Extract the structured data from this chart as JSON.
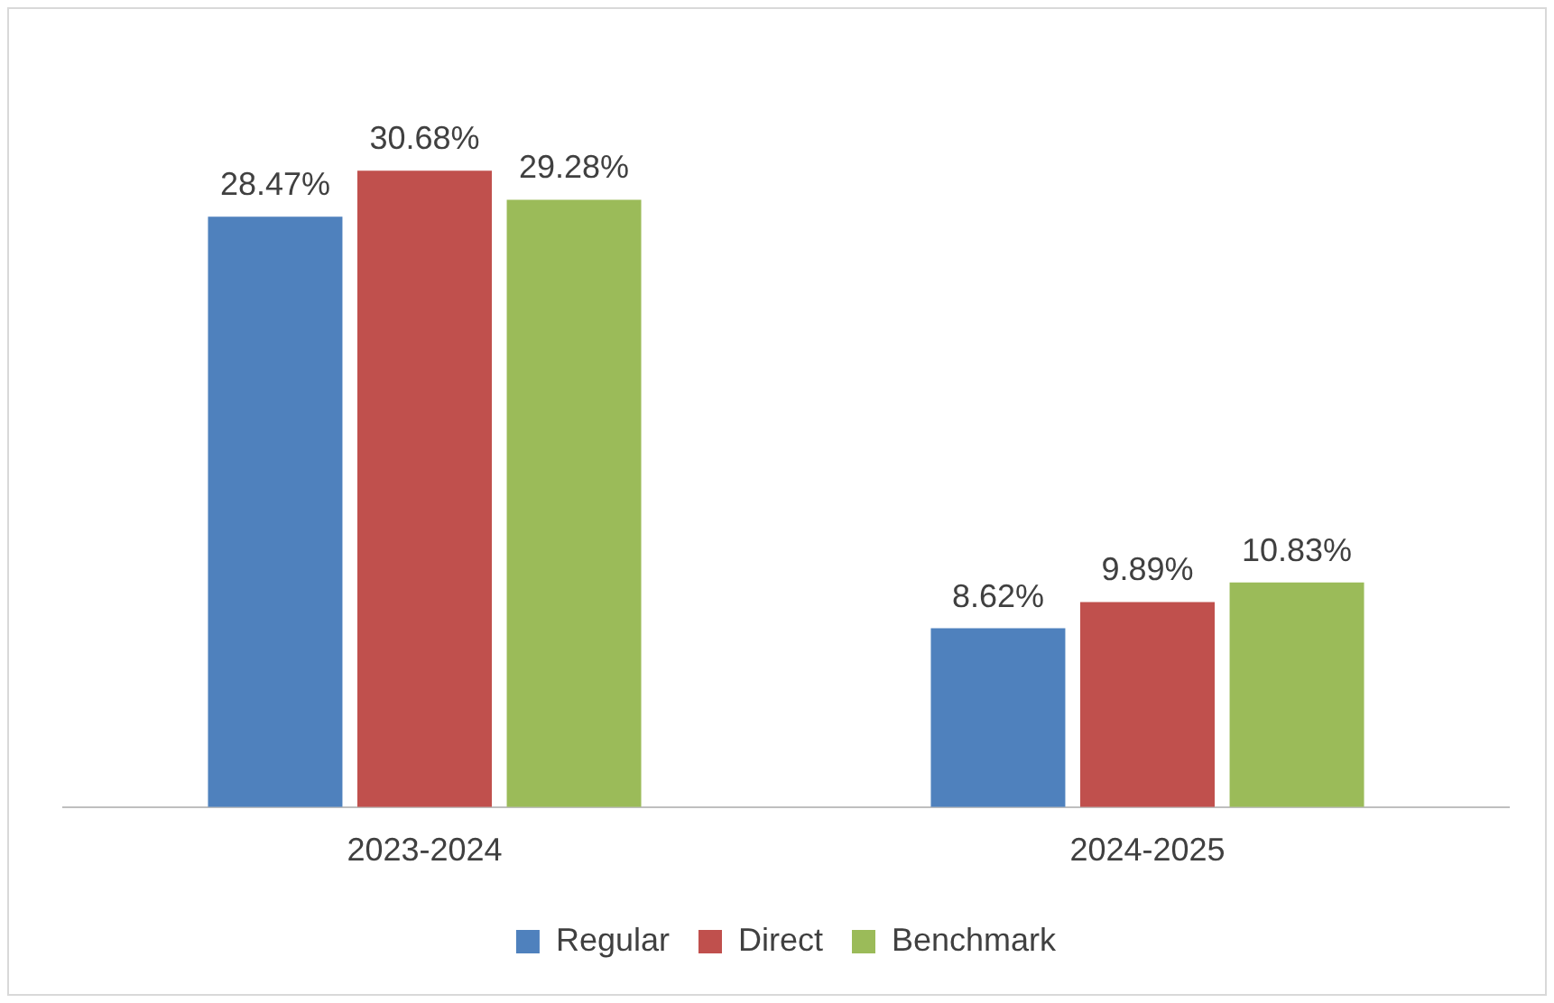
{
  "chart_data": {
    "type": "bar",
    "categories": [
      "2023-2024",
      "2024-2025"
    ],
    "series": [
      {
        "name": "Regular",
        "color": "#4f81bd",
        "values": [
          28.47,
          8.62
        ],
        "value_labels": [
          "28.47%",
          "8.62%"
        ]
      },
      {
        "name": "Direct",
        "color": "#c0504d",
        "values": [
          30.68,
          9.89
        ],
        "value_labels": [
          "30.68%",
          "9.89%"
        ]
      },
      {
        "name": "Benchmark",
        "color": "#9bbb59",
        "values": [
          29.28,
          10.83
        ],
        "value_labels": [
          "29.28%",
          "10.83%"
        ]
      }
    ],
    "grid": false,
    "legend": "bottom"
  }
}
